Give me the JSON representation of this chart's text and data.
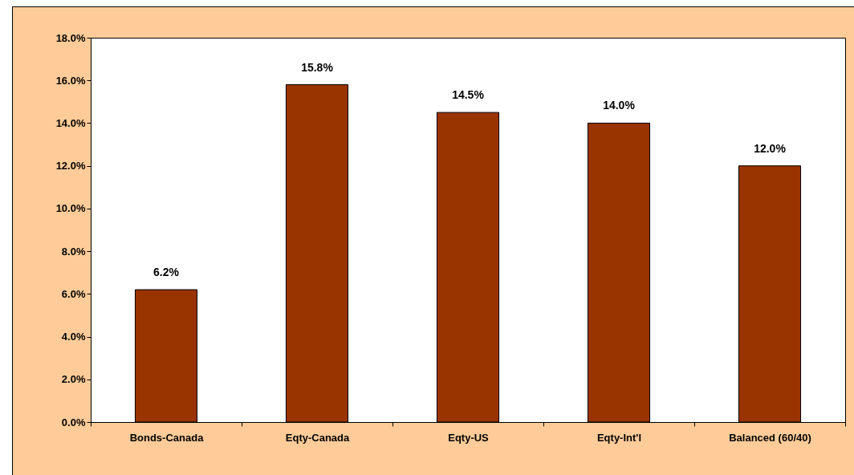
{
  "chart_data": {
    "type": "bar",
    "categories": [
      "Bonds-Canada",
      "Eqty-Canada",
      "Eqty-US",
      "Eqty-Int'l",
      "Balanced (60/40)"
    ],
    "values": [
      6.2,
      15.8,
      14.5,
      14.0,
      12.0
    ],
    "value_labels": [
      "6.2%",
      "15.8%",
      "14.5%",
      "14.0%",
      "12.0%"
    ],
    "color": "#993300",
    "ylim": [
      0,
      18
    ],
    "yticks": [
      {
        "value": 0,
        "label": "0.0%"
      },
      {
        "value": 2,
        "label": "2.0%"
      },
      {
        "value": 4,
        "label": "4.0%"
      },
      {
        "value": 6,
        "label": "6.0%"
      },
      {
        "value": 8,
        "label": "8.0%"
      },
      {
        "value": 10,
        "label": "10.0%"
      },
      {
        "value": 12,
        "label": "12.0%"
      },
      {
        "value": 14,
        "label": "14.0%"
      },
      {
        "value": 16,
        "label": "16.0%"
      },
      {
        "value": 18,
        "label": "18.0%"
      }
    ]
  }
}
